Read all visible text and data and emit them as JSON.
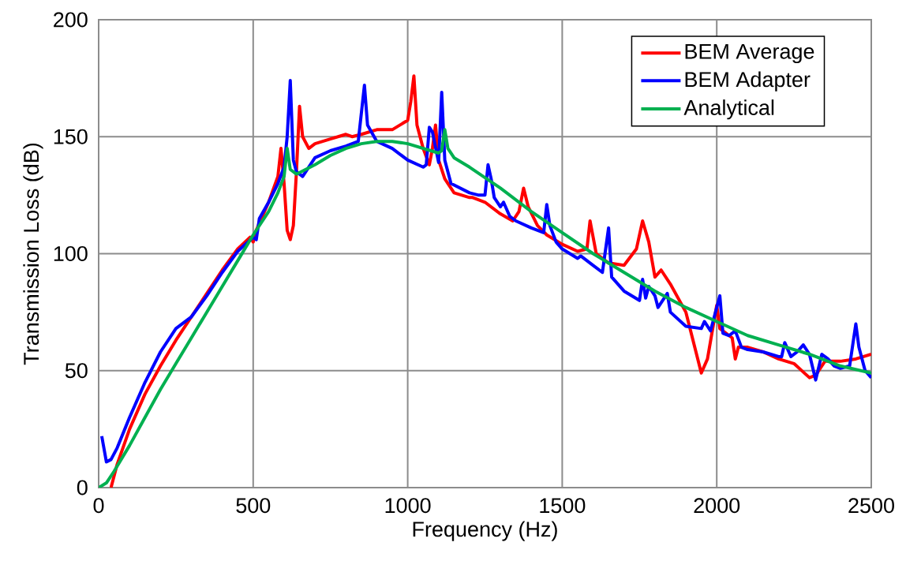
{
  "chart_data": {
    "type": "line",
    "xlabel": "Frequency (Hz)",
    "ylabel": "Transmission Loss (dB)",
    "xlim": [
      0,
      2500
    ],
    "ylim": [
      0,
      200
    ],
    "xticks": [
      0,
      500,
      1000,
      1500,
      2000,
      2500
    ],
    "yticks": [
      0,
      50,
      100,
      150,
      200
    ],
    "grid": true,
    "legend": "top right",
    "marker": "none",
    "line_style": "solid",
    "series": [
      {
        "name": "BEM Average",
        "color": "#ff0000",
        "x": [
          40,
          60,
          100,
          150,
          200,
          250,
          300,
          350,
          400,
          450,
          490,
          500,
          510,
          550,
          580,
          590,
          600,
          610,
          620,
          630,
          640,
          650,
          660,
          680,
          700,
          750,
          800,
          820,
          850,
          900,
          950,
          1000,
          1010,
          1020,
          1030,
          1050,
          1070,
          1080,
          1090,
          1100,
          1120,
          1150,
          1200,
          1210,
          1250,
          1300,
          1340,
          1360,
          1375,
          1390,
          1420,
          1450,
          1500,
          1550,
          1580,
          1590,
          1610,
          1650,
          1700,
          1740,
          1760,
          1780,
          1800,
          1820,
          1850,
          1900,
          1950,
          1970,
          2000,
          2010,
          2050,
          2060,
          2070,
          2100,
          2150,
          2200,
          2250,
          2300,
          2320,
          2350,
          2400,
          2450,
          2500
        ],
        "values": [
          0,
          10,
          25,
          40,
          52,
          63,
          73,
          83,
          93,
          102,
          107,
          105,
          110,
          122,
          133,
          145,
          130,
          110,
          106,
          112,
          135,
          163,
          150,
          145,
          147,
          149,
          151,
          150,
          151,
          153,
          153,
          157,
          165,
          176,
          155,
          145,
          138,
          145,
          155,
          140,
          132,
          126,
          124,
          124,
          122,
          117,
          114,
          118,
          128,
          120,
          112,
          108,
          104,
          101,
          102,
          114,
          100,
          96,
          95,
          102,
          114,
          105,
          90,
          93,
          87,
          75,
          49,
          55,
          78,
          68,
          64,
          55,
          60,
          60,
          58,
          55,
          53,
          47,
          48,
          54,
          54,
          55,
          57
        ]
      },
      {
        "name": "BEM Adapter",
        "color": "#0000ff",
        "x": [
          10,
          25,
          40,
          60,
          100,
          150,
          200,
          250,
          300,
          350,
          400,
          450,
          500,
          510,
          520,
          550,
          580,
          600,
          610,
          620,
          630,
          640,
          660,
          700,
          750,
          800,
          840,
          860,
          870,
          900,
          950,
          1000,
          1050,
          1060,
          1070,
          1080,
          1100,
          1110,
          1120,
          1140,
          1200,
          1230,
          1250,
          1260,
          1270,
          1280,
          1300,
          1310,
          1330,
          1350,
          1400,
          1420,
          1440,
          1450,
          1460,
          1480,
          1500,
          1550,
          1560,
          1600,
          1630,
          1650,
          1660,
          1700,
          1750,
          1760,
          1770,
          1780,
          1800,
          1810,
          1840,
          1850,
          1900,
          1950,
          1960,
          1980,
          2010,
          2020,
          2040,
          2060,
          2080,
          2100,
          2150,
          2200,
          2210,
          2220,
          2240,
          2260,
          2280,
          2300,
          2320,
          2340,
          2360,
          2380,
          2400,
          2430,
          2450,
          2460,
          2480,
          2500
        ],
        "values": [
          22,
          11,
          12,
          17,
          30,
          45,
          58,
          68,
          73,
          82,
          92,
          101,
          107,
          106,
          115,
          122,
          130,
          137,
          150,
          174,
          140,
          135,
          133,
          141,
          144,
          146,
          148,
          172,
          155,
          148,
          145,
          140,
          137,
          138,
          154,
          152,
          139,
          169,
          140,
          130,
          126,
          125,
          125,
          138,
          132,
          124,
          120,
          122,
          116,
          114,
          111,
          110,
          109,
          121,
          112,
          105,
          102,
          98,
          99,
          95,
          92,
          111,
          90,
          84,
          80,
          89,
          81,
          86,
          82,
          77,
          83,
          75,
          69,
          68,
          71,
          67,
          82,
          66,
          65,
          67,
          60,
          59,
          58,
          56,
          56,
          62,
          56,
          58,
          61,
          57,
          46,
          57,
          55,
          52,
          51,
          52,
          70,
          60,
          50,
          47
        ]
      },
      {
        "name": "Analytical",
        "color": "#00b050",
        "x": [
          0,
          25,
          50,
          100,
          150,
          200,
          250,
          300,
          350,
          400,
          450,
          500,
          550,
          580,
          600,
          610,
          620,
          640,
          700,
          750,
          800,
          850,
          900,
          950,
          1000,
          1050,
          1100,
          1110,
          1120,
          1130,
          1150,
          1200,
          1300,
          1400,
          1500,
          1600,
          1700,
          1800,
          1900,
          2000,
          2100,
          2200,
          2300,
          2400,
          2500
        ],
        "values": [
          0,
          2,
          7,
          18,
          30,
          42,
          53,
          64,
          75,
          86,
          97,
          108,
          118,
          126,
          133,
          145,
          136,
          134,
          138,
          142,
          145,
          147,
          148,
          148,
          147,
          145,
          143,
          144,
          153,
          145,
          141,
          137,
          128,
          118,
          109,
          100,
          92,
          84,
          77,
          71,
          65,
          61,
          57,
          52,
          49
        ]
      }
    ]
  }
}
